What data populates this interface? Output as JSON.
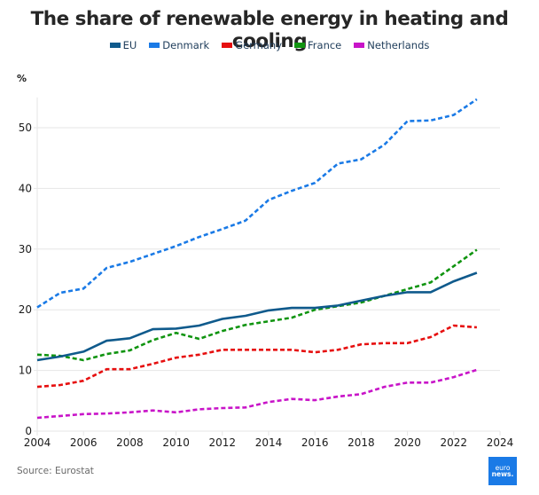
{
  "chart_data": {
    "type": "line",
    "title": "The share of renewable energy in heating and cooling",
    "xlabel": "",
    "ylabel": "%",
    "xlim": [
      2004,
      2024
    ],
    "ylim": [
      0,
      55
    ],
    "x_ticks": [
      2004,
      2006,
      2008,
      2010,
      2012,
      2014,
      2016,
      2018,
      2020,
      2022,
      2024
    ],
    "y_ticks": [
      0,
      10,
      20,
      30,
      40,
      50
    ],
    "grid": "horizontal",
    "legend_position": "top-center",
    "x": [
      2004,
      2005,
      2006,
      2007,
      2008,
      2009,
      2010,
      2011,
      2012,
      2013,
      2014,
      2015,
      2016,
      2017,
      2018,
      2019,
      2020,
      2021,
      2022,
      2023
    ],
    "series": [
      {
        "name": "EU",
        "color": "#0f5a8c",
        "style": "solid",
        "values": [
          11.7,
          12.3,
          13.1,
          14.9,
          15.3,
          16.8,
          16.9,
          17.4,
          18.5,
          19.0,
          19.9,
          20.3,
          20.3,
          20.7,
          21.5,
          22.3,
          22.9,
          22.9,
          24.7,
          26.1
        ]
      },
      {
        "name": "Denmark",
        "color": "#1a7ae6",
        "style": "dashed",
        "values": [
          20.4,
          22.8,
          23.5,
          26.9,
          27.9,
          29.2,
          30.5,
          32.0,
          33.3,
          34.7,
          38.1,
          39.6,
          40.9,
          44.1,
          44.8,
          47.2,
          51.1,
          51.2,
          52.1,
          54.7
        ]
      },
      {
        "name": "Germany",
        "color": "#e60f0f",
        "style": "dashed",
        "values": [
          7.3,
          7.6,
          8.3,
          10.2,
          10.2,
          11.1,
          12.1,
          12.6,
          13.4,
          13.4,
          13.4,
          13.4,
          13.0,
          13.4,
          14.3,
          14.5,
          14.5,
          15.5,
          17.4,
          17.1
        ]
      },
      {
        "name": "France",
        "color": "#109410",
        "style": "dashed",
        "values": [
          12.6,
          12.4,
          11.7,
          12.7,
          13.3,
          15.0,
          16.2,
          15.2,
          16.5,
          17.5,
          18.1,
          18.7,
          20.0,
          20.6,
          21.2,
          22.3,
          23.4,
          24.5,
          27.2,
          29.9
        ]
      },
      {
        "name": "Netherlands",
        "color": "#c814c8",
        "style": "dashed",
        "values": [
          2.2,
          2.5,
          2.8,
          2.9,
          3.1,
          3.4,
          3.1,
          3.6,
          3.8,
          3.9,
          4.8,
          5.3,
          5.1,
          5.7,
          6.1,
          7.3,
          8.0,
          8.0,
          8.9,
          10.1
        ]
      }
    ]
  },
  "source": "Source: Eurostat",
  "logo": {
    "line1": "euro",
    "line2": "news."
  }
}
